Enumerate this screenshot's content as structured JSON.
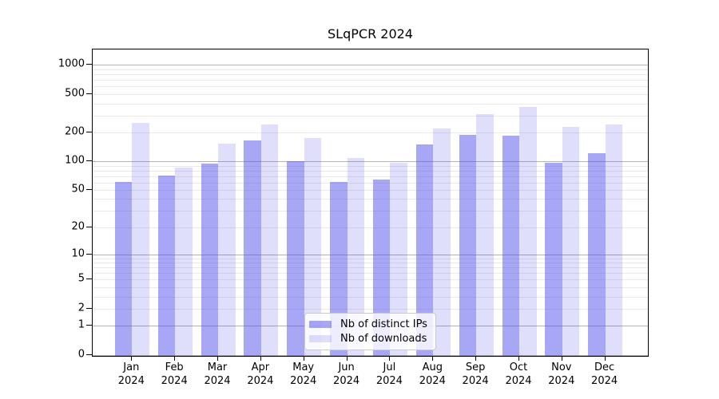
{
  "chart_data": {
    "type": "bar",
    "title": "SLqPCR 2024",
    "xlabel": "",
    "ylabel": "",
    "yscale": "log1p",
    "ylim": [
      0,
      1450
    ],
    "grid": "on",
    "yticks": [
      0,
      1,
      2,
      5,
      10,
      20,
      50,
      100,
      200,
      500,
      1000
    ],
    "grid_major_values": [
      0,
      1,
      10,
      100,
      1000
    ],
    "grid_minor_values": [
      2,
      3,
      4,
      5,
      6,
      7,
      8,
      9,
      20,
      30,
      40,
      50,
      60,
      70,
      80,
      90,
      200,
      300,
      400,
      500,
      600,
      700,
      800,
      900
    ],
    "categories": [
      "Jan",
      "Feb",
      "Mar",
      "Apr",
      "May",
      "Jun",
      "Jul",
      "Aug",
      "Sep",
      "Oct",
      "Nov",
      "Dec"
    ],
    "category_year": "2024",
    "series": [
      {
        "name": "Nb of distinct IPs",
        "alpha": 0.5,
        "values": [
          58,
          68,
          91,
          160,
          96,
          58,
          62,
          145,
          183,
          178,
          93,
          116
        ]
      },
      {
        "name": "Nb of downloads",
        "alpha": 0.18,
        "values": [
          240,
          82,
          148,
          231,
          167,
          104,
          93,
          212,
          298,
          355,
          218,
          233
        ]
      }
    ],
    "legend": {
      "position": "lower center"
    },
    "colors": {
      "bar_base": "#5050ee",
      "bar_dark_composite": "#a7a7f6",
      "bar_light_composite": "#dcdcfb",
      "grid_major": "#b3b3b3",
      "grid_minor": "#e9e9e9",
      "axis": "#000000",
      "background": "#ffffff"
    }
  }
}
